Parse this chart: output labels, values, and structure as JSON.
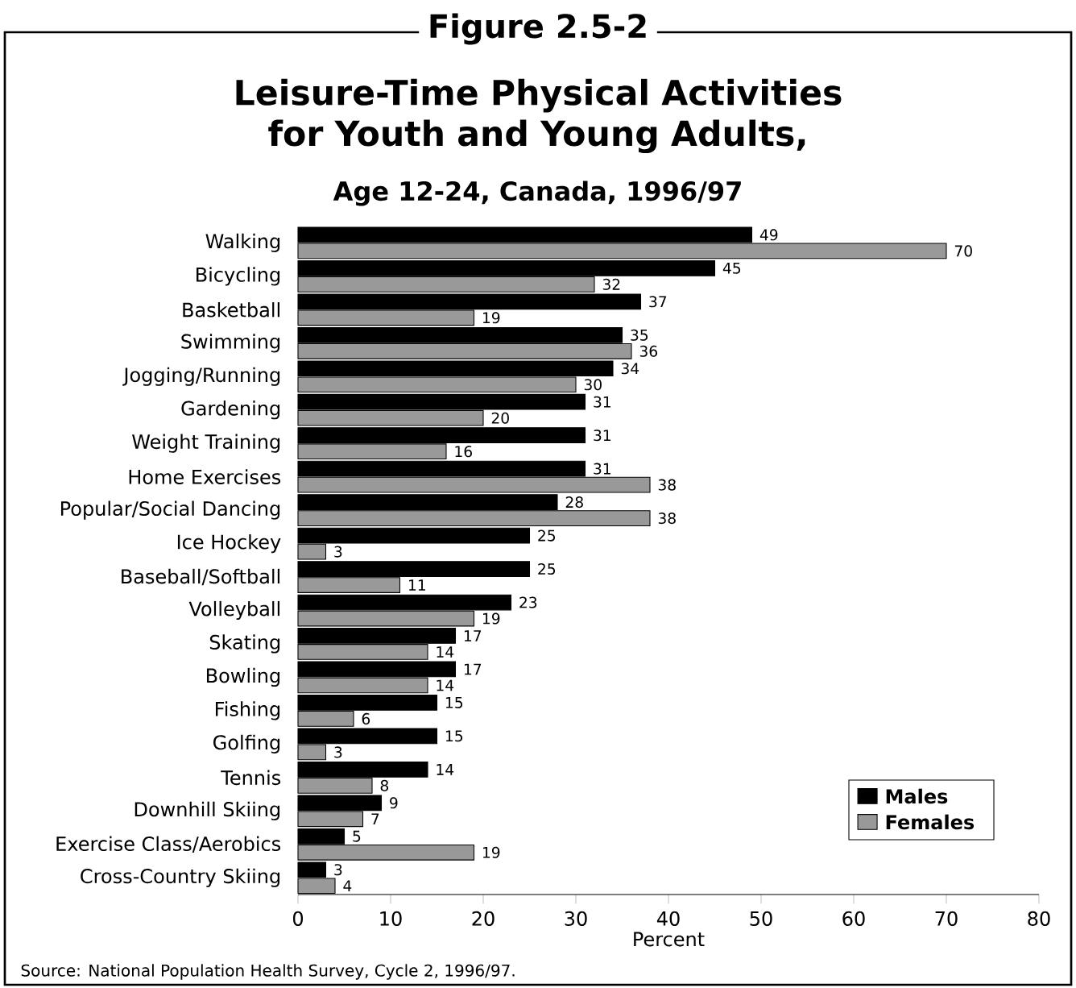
{
  "chart_data": {
    "type": "bar",
    "orientation": "horizontal",
    "title": "Figure 2.5-2",
    "subtitle": "Leisure-Time Physical Activities for Youth and Young Adults,",
    "annotations": [
      "Age 12-24, Canada, 1996/97",
      "Source: National Population Health Survey, Cycle 2, 1996/97."
    ],
    "categories": [
      "Walking",
      "Bicycling",
      "Basketball",
      "Swimming",
      "Jogging/Running",
      "Gardening",
      "Weight Training",
      "Home Exercises",
      "Popular/Social Dancing",
      "Ice Hockey",
      "Baseball/Softball",
      "Volleyball",
      "Skating",
      "Bowling",
      "Fishing",
      "Golfing",
      "Tennis",
      "Downhill Skiing",
      "Exercise Class/Aerobics",
      "Cross-Country Skiing"
    ],
    "series": [
      {
        "name": "Males",
        "color": "#000000",
        "values": [
          49,
          45,
          37,
          35,
          34,
          31,
          31,
          31,
          28,
          25,
          25,
          23,
          17,
          17,
          15,
          15,
          14,
          9,
          5,
          3
        ]
      },
      {
        "name": "Females",
        "color": "#999999",
        "values": [
          70,
          32,
          19,
          36,
          30,
          20,
          16,
          38,
          38,
          3,
          11,
          19,
          14,
          14,
          6,
          3,
          8,
          7,
          19,
          4
        ]
      }
    ],
    "xlabel": "Percent",
    "xlim": [
      0,
      80
    ],
    "xticks": [
      0,
      10,
      20,
      30,
      40,
      50,
      60,
      70,
      80
    ],
    "data_labels": true,
    "legend": "bottom right"
  }
}
